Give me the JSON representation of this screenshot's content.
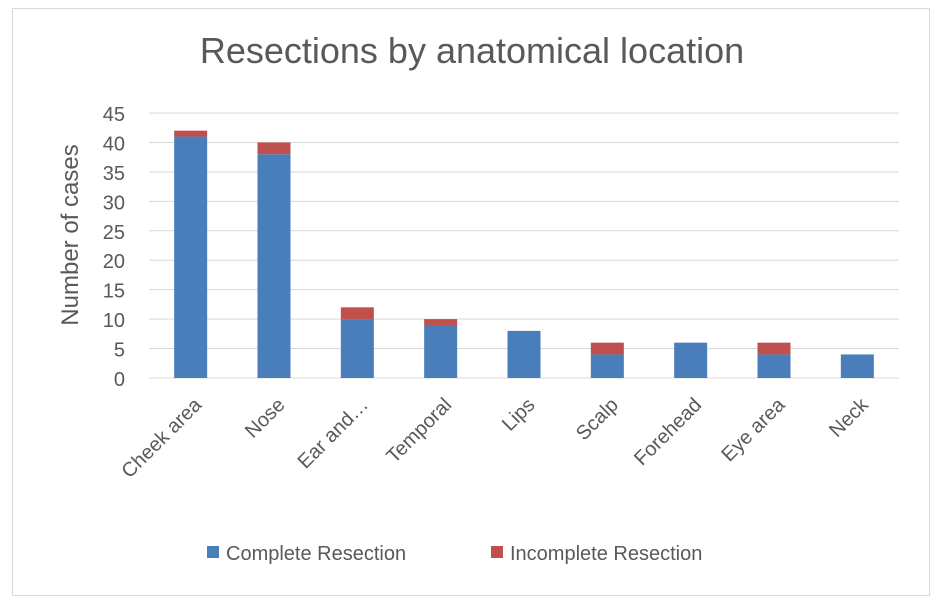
{
  "chart_data": {
    "type": "bar",
    "stacked": true,
    "title": "Resections by anatomical location",
    "xlabel": "",
    "ylabel": "Number of cases",
    "ylim": [
      0,
      45
    ],
    "yticks": [
      0,
      5,
      10,
      15,
      20,
      25,
      30,
      35,
      40,
      45
    ],
    "grid": true,
    "legend_position": "bottom",
    "categories": [
      "Cheek area",
      "Nose",
      "Ear and…",
      "Temporal",
      "Lips",
      "Scalp",
      "Forehead",
      "Eye area",
      "Neck"
    ],
    "series": [
      {
        "name": "Complete Resection",
        "color": "#4a7ebb",
        "values": [
          41,
          38,
          10,
          9,
          8,
          4,
          6,
          4,
          4
        ]
      },
      {
        "name": "Incomplete Resection",
        "color": "#c0504d",
        "values": [
          1,
          2,
          2,
          1,
          0,
          2,
          0,
          2,
          0
        ]
      }
    ]
  }
}
